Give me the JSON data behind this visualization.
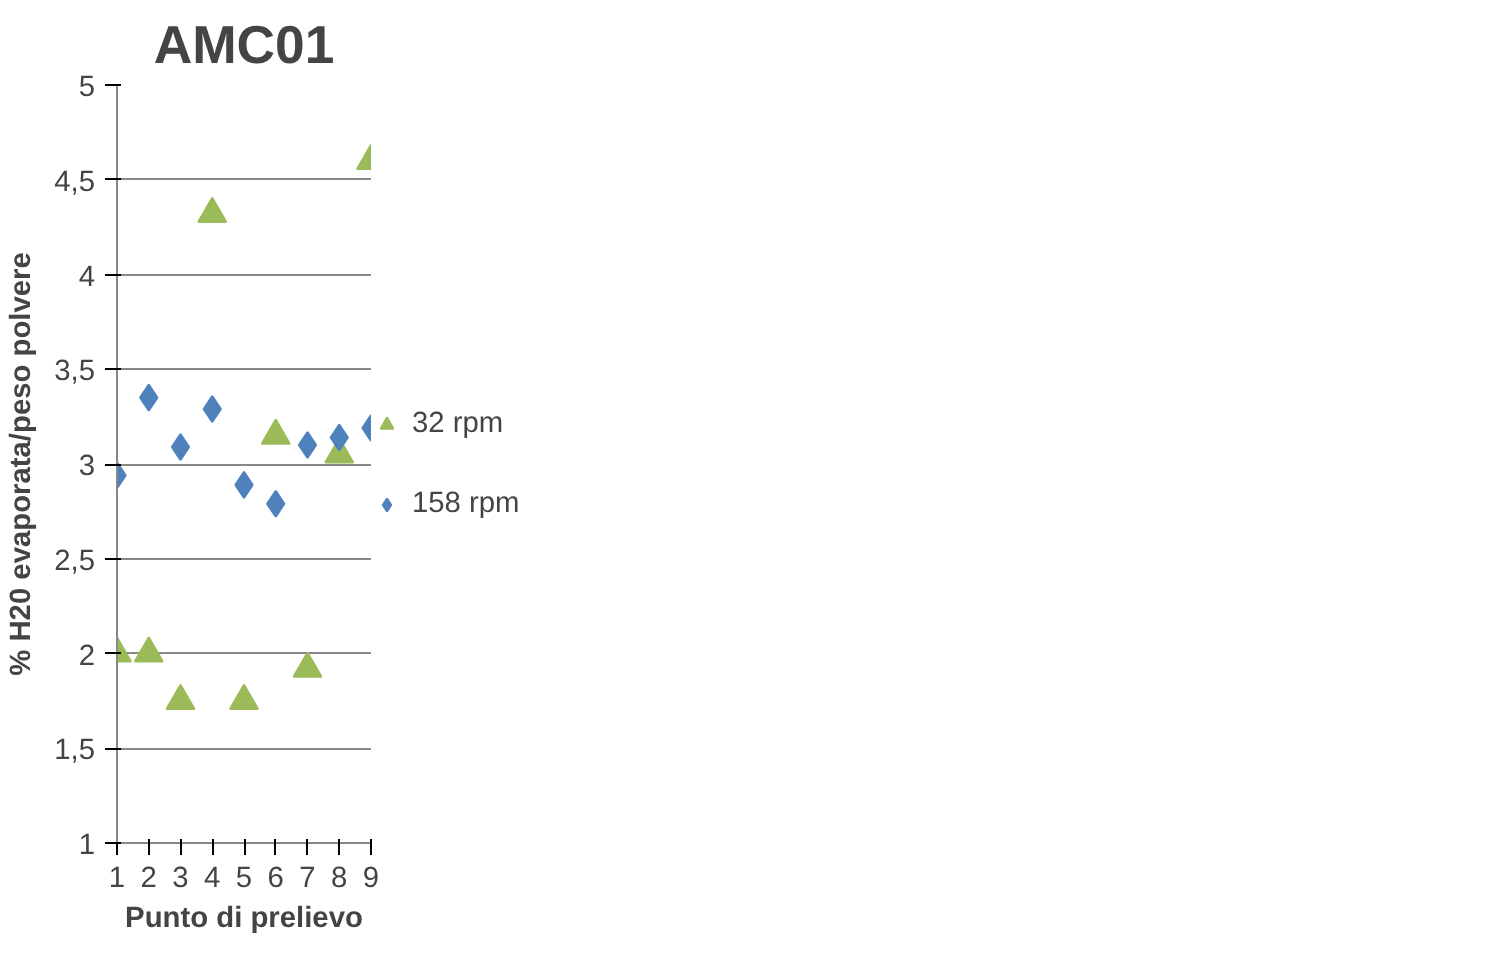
{
  "chart_data": {
    "type": "scatter",
    "title": "AMC01",
    "xlabel": "Punto di prelievo",
    "ylabel": "% H20 evaporata/peso polvere",
    "x": [
      1,
      2,
      3,
      4,
      5,
      6,
      7,
      8,
      9
    ],
    "xlim": [
      1,
      9
    ],
    "xticks": [
      1,
      2,
      3,
      4,
      5,
      6,
      7,
      8,
      9
    ],
    "ylim": [
      1,
      5
    ],
    "yticks": [
      1,
      {
        "value": 1.5,
        "label": "1,5"
      },
      2,
      {
        "value": 2.5,
        "label": "2,5"
      },
      3,
      {
        "value": 3.5,
        "label": "3,5"
      },
      4,
      {
        "value": 4.5,
        "label": "4,5"
      },
      5
    ],
    "grid": "y",
    "legend": "right",
    "series": [
      {
        "name": "32 rpm",
        "color": "#9bbb59",
        "marker": "triangle",
        "values": [
          2.0,
          2.0,
          1.75,
          4.32,
          1.75,
          3.15,
          1.92,
          3.05,
          4.6
        ]
      },
      {
        "name": "158 rpm",
        "color": "#4f81bd",
        "marker": "diamond",
        "values": [
          2.94,
          3.35,
          3.09,
          3.29,
          2.89,
          2.79,
          3.1,
          3.14,
          3.19
        ]
      }
    ]
  }
}
